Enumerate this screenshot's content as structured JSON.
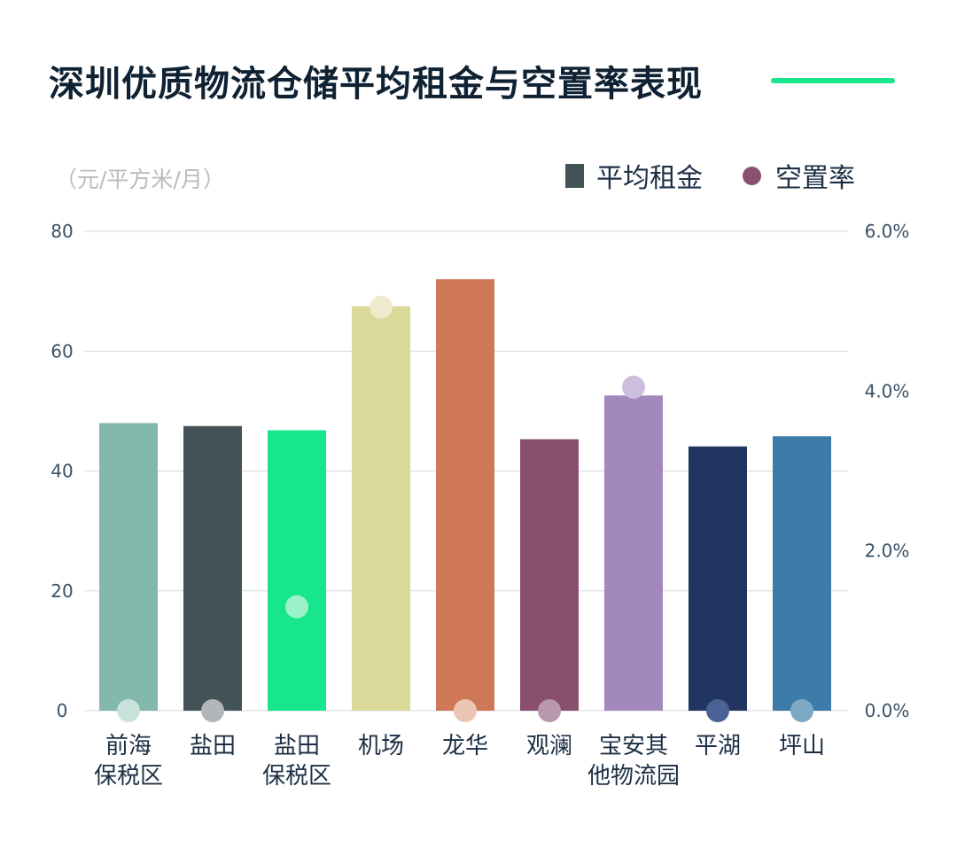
{
  "title": "深圳优质物流仓储平均租金与空置率表现",
  "unit_label": "（元/平方米/月）",
  "legend": {
    "rent_label": "平均租金",
    "vacancy_label": "空置率"
  },
  "colors": {
    "accent": "#18e68c",
    "rent_legend": "#435357",
    "vacancy_legend": "#8a5070"
  },
  "chart_data": {
    "type": "bar",
    "title": "深圳优质物流仓储平均租金与空置率表现",
    "ylabel": "（元/平方米/月）",
    "categories": [
      [
        "前海",
        "保税区"
      ],
      [
        "盐田"
      ],
      [
        "盐田",
        "保税区"
      ],
      [
        "机场"
      ],
      [
        "龙华"
      ],
      [
        "观澜"
      ],
      [
        "宝安其",
        "他物流园"
      ],
      [
        "平湖"
      ],
      [
        "坪山"
      ]
    ],
    "series": [
      {
        "name": "平均租金",
        "axis": "left",
        "values": [
          48.0,
          47.5,
          46.8,
          67.5,
          72.0,
          45.3,
          52.6,
          44.1,
          45.8
        ],
        "colors": [
          "#83b9ab",
          "#435357",
          "#18e68c",
          "#dad99a",
          "#cf7858",
          "#894f6f",
          "#a388be",
          "#203661",
          "#3d7ca8"
        ]
      },
      {
        "name": "空置率",
        "axis": "right",
        "unit": "%",
        "values": [
          0.0,
          0.0,
          1.3,
          5.05,
          0.0,
          0.0,
          4.05,
          0.0,
          0.0
        ],
        "colors": [
          "#c9e2dc",
          "#b1b6b8",
          "#9cf2c9",
          "#eeeccd",
          "#ebc5b4",
          "#b997ac",
          "#cdbedb",
          "#4a6296",
          "#7da9c6"
        ]
      }
    ],
    "ylim_left": [
      0,
      80
    ],
    "yticks_left": [
      "0",
      "20",
      "40",
      "60",
      "80"
    ],
    "ylim_right": [
      0,
      6
    ],
    "yticks_right": [
      "0.0%",
      "2.0%",
      "4.0%",
      "6.0%"
    ],
    "grid": true,
    "legend_position": "top-right"
  }
}
